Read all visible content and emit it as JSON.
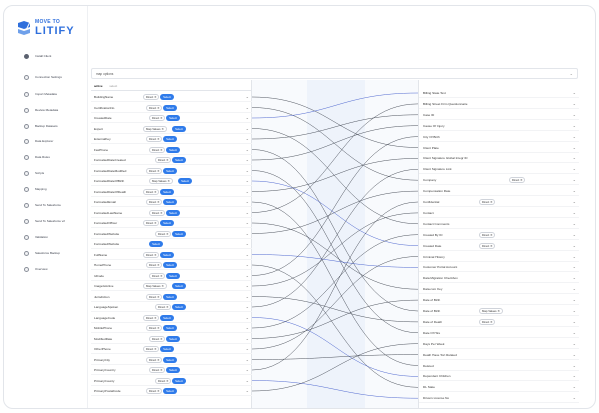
{
  "brand": {
    "line1": "MOVE TO",
    "line2": "LITIFY"
  },
  "nav": [
    {
      "label": "Install Client",
      "active": true
    },
    {
      "label": "Connection Settings",
      "active": false
    },
    {
      "label": "Import Metadata",
      "active": false
    },
    {
      "label": "Review Metadata",
      "active": false
    },
    {
      "label": "Backup Datasets",
      "active": false
    },
    {
      "label": "Data Explorer",
      "active": false
    },
    {
      "label": "Data Rules",
      "active": false
    },
    {
      "label": "Scripts",
      "active": false
    },
    {
      "label": "Mapping",
      "active": false
    },
    {
      "label": "Send To Salesforce",
      "active": false
    },
    {
      "label": "Send To Salesforce v2",
      "active": false
    },
    {
      "label": "Validation",
      "active": false
    },
    {
      "label": "Salesforce Backup",
      "active": false
    },
    {
      "label": "Overview",
      "active": false
    }
  ],
  "search": {
    "placeholder": "map options"
  },
  "filter_tabs": [
    "active",
    "select"
  ],
  "left_fields": [
    {
      "name": "BuildingName",
      "select": "Direct",
      "button": "Select"
    },
    {
      "name": "CertificationNo",
      "select": "Direct",
      "button": "Select"
    },
    {
      "name": "CreatedDate",
      "select": "Direct",
      "button": "Select"
    },
    {
      "name": "Expert",
      "select": "Map Values",
      "button": "Select"
    },
    {
      "name": "ExternalKey",
      "select": "Direct",
      "button": "Select"
    },
    {
      "name": "FaxPhone",
      "select": "Direct",
      "button": "Select"
    },
    {
      "name": "FormattedDateCreated",
      "select": "Direct",
      "button": "Select"
    },
    {
      "name": "FormattedDateModified",
      "select": "Direct",
      "button": "Select"
    },
    {
      "name": "FormattedDateOfBirth",
      "select": "Map Values",
      "button": "Select"
    },
    {
      "name": "FormattedDateOfDeath",
      "select": "Direct",
      "button": "Select"
    },
    {
      "name": "FormattedEmail",
      "select": "Direct",
      "button": "Select"
    },
    {
      "name": "FormattedLastName",
      "select": "Direct",
      "button": "Select"
    },
    {
      "name": "FormattedOfficer",
      "select": "Direct",
      "button": "Select"
    },
    {
      "name": "FormattedWebsite",
      "select": "Direct",
      "button": "Select"
    },
    {
      "name": "FormattedWebsite",
      "select": "",
      "button": "Select"
    },
    {
      "name": "FullName",
      "select": "Direct",
      "button": "Select"
    },
    {
      "name": "HomePhone",
      "select": "Direct",
      "button": "Select"
    },
    {
      "name": "IdCode",
      "select": "Direct",
      "button": "Select"
    },
    {
      "name": "ImageIsActive",
      "select": "Map Values",
      "button": "Select"
    },
    {
      "name": "Jurisdiction",
      "select": "Direct",
      "button": "Select"
    },
    {
      "name": "LanguageSpoken",
      "select": "Direct",
      "button": "Select"
    },
    {
      "name": "LanguageCode",
      "select": "Direct",
      "button": "Select"
    },
    {
      "name": "MobilePhone",
      "select": "Direct",
      "button": "Select"
    },
    {
      "name": "ModifiedDate",
      "select": "Direct",
      "button": "Select"
    },
    {
      "name": "OtherPhone",
      "select": "Direct",
      "button": "Select"
    },
    {
      "name": "PrimaryCity",
      "select": "Direct",
      "button": "Select"
    },
    {
      "name": "PrimaryCountry",
      "select": "Direct",
      "button": "Select"
    },
    {
      "name": "PrimaryCounty",
      "select": "Direct",
      "button": "Select"
    },
    {
      "name": "PrimaryPostalCode",
      "select": "Direct",
      "button": "Select"
    }
  ],
  "right_fields": [
    {
      "name": "Billing State Text",
      "select": ""
    },
    {
      "name": "Billing Street Firm Questionnaire",
      "select": ""
    },
    {
      "name": "Case ID",
      "select": ""
    },
    {
      "name": "Cause Of Injury",
      "select": ""
    },
    {
      "name": "City Of Birth",
      "select": ""
    },
    {
      "name": "Client Plate",
      "select": ""
    },
    {
      "name": "Client Signature Global Integr ID",
      "select": ""
    },
    {
      "name": "Client Signature Link",
      "select": ""
    },
    {
      "name": "Company",
      "select": "Direct"
    },
    {
      "name": "Compensation Rate",
      "select": ""
    },
    {
      "name": "Confidential",
      "select": "Direct"
    },
    {
      "name": "Contact",
      "select": ""
    },
    {
      "name": "Contact Comments",
      "select": ""
    },
    {
      "name": "Created By ID",
      "select": "Direct"
    },
    {
      "name": "Created Date",
      "select": "Direct"
    },
    {
      "name": "Criminal History",
      "select": ""
    },
    {
      "name": "Customer Portal Account",
      "select": ""
    },
    {
      "name": "Data Migration Checkbox",
      "select": ""
    },
    {
      "name": "Data.com Key",
      "select": ""
    },
    {
      "name": "Date of Birth",
      "select": ""
    },
    {
      "name": "Date of Birth",
      "select": "Map Values"
    },
    {
      "name": "Date of Death",
      "select": "Direct"
    },
    {
      "name": "Date Of Hire",
      "select": ""
    },
    {
      "name": "Days Per Week",
      "select": ""
    },
    {
      "name": "Death Have Tort Related",
      "select": ""
    },
    {
      "name": "Deleted",
      "select": ""
    },
    {
      "name": "Dependent Children",
      "select": ""
    },
    {
      "name": "DL State",
      "select": ""
    },
    {
      "name": "Drivers License No",
      "select": ""
    }
  ],
  "colors": {
    "accent": "#2f7bea",
    "link_line": "#3a3f4b",
    "link_line_blue": "#3b56c9"
  }
}
